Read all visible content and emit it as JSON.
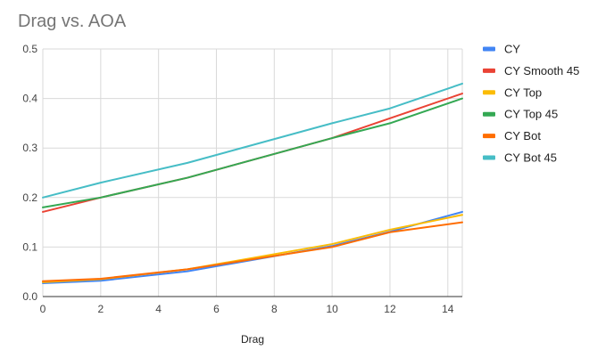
{
  "chart_data": {
    "type": "line",
    "title": "Drag vs. AOA",
    "xlabel": "Drag",
    "ylabel": "",
    "xlim": [
      0,
      14.5
    ],
    "ylim": [
      0,
      0.5
    ],
    "x_ticks": [
      0,
      2,
      4,
      6,
      8,
      10,
      12,
      14
    ],
    "y_ticks": [
      0,
      0.1,
      0.2,
      0.3,
      0.4,
      0.5
    ],
    "x_tick_labels": [
      "0",
      "2",
      "4",
      "6",
      "8",
      "10",
      "12",
      "14"
    ],
    "y_tick_labels": [
      "0.0",
      "0.1",
      "0.2",
      "0.3",
      "0.4",
      "0.5"
    ],
    "grid": true,
    "legend_position": "right",
    "x": [
      0,
      2,
      5,
      10,
      12,
      14.5
    ],
    "series": [
      {
        "name": "CY",
        "color": "#4285F4",
        "values": [
          0.027,
          0.032,
          0.051,
          0.102,
          0.131,
          0.171
        ]
      },
      {
        "name": "CY Smooth 45",
        "color": "#EA4335",
        "values": [
          0.171,
          0.2,
          0.24,
          0.32,
          0.36,
          0.41
        ]
      },
      {
        "name": "CY Top",
        "color": "#FBBC04",
        "values": [
          0.029,
          0.035,
          0.055,
          0.106,
          0.135,
          0.165
        ]
      },
      {
        "name": "CY Top 45",
        "color": "#34A853",
        "values": [
          0.18,
          0.2,
          0.24,
          0.32,
          0.35,
          0.4
        ]
      },
      {
        "name": "CY Bot",
        "color": "#FF6D01",
        "values": [
          0.031,
          0.036,
          0.055,
          0.1,
          0.13,
          0.15
        ]
      },
      {
        "name": "CY Bot 45",
        "color": "#46BDC6",
        "values": [
          0.2,
          0.23,
          0.27,
          0.35,
          0.38,
          0.43
        ]
      }
    ]
  }
}
